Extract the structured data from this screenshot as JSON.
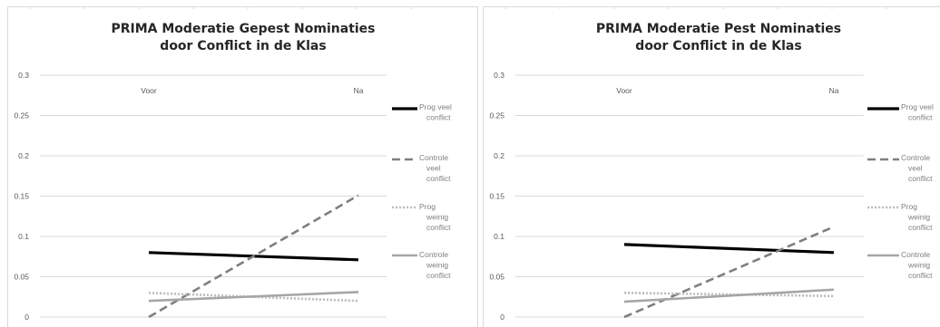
{
  "chart_data": [
    {
      "type": "line",
      "title_lines": [
        "PRIMA Moderatie Gepest Nominaties",
        "door Conflict in de Klas"
      ],
      "categories": [
        "Voor",
        "Na"
      ],
      "ylim": [
        0,
        0.3
      ],
      "yticks": [
        "0",
        "0.05",
        "0.1",
        "0.15",
        "0.2",
        "0.25",
        "0.3"
      ],
      "grid": true,
      "legend_position": "right",
      "series": [
        {
          "name_lines": [
            "Prog veel",
            "conflict"
          ],
          "values": [
            0.08,
            0.071
          ],
          "color": "#000000",
          "style": "solid"
        },
        {
          "name_lines": [
            "Controle",
            "veel",
            "conflict"
          ],
          "values": [
            0.0,
            0.151
          ],
          "color": "#7f7f7f",
          "style": "dashed"
        },
        {
          "name_lines": [
            "Prog",
            "weinig",
            "conflict"
          ],
          "values": [
            0.03,
            0.02
          ],
          "color": "#bfbfbf",
          "style": "dotted"
        },
        {
          "name_lines": [
            "Controle",
            "weinig",
            "conflict"
          ],
          "values": [
            0.02,
            0.031
          ],
          "color": "#a6a6a6",
          "style": "solid"
        }
      ]
    },
    {
      "type": "line",
      "title_lines": [
        "PRIMA Moderatie Pest Nominaties",
        "door Conflict in de Klas"
      ],
      "categories": [
        "Voor",
        "Na"
      ],
      "ylim": [
        0,
        0.3
      ],
      "yticks": [
        "0",
        "0.05",
        "0.1",
        "0.15",
        "0.2",
        "0.25",
        "0.3"
      ],
      "grid": true,
      "legend_position": "right",
      "series": [
        {
          "name_lines": [
            "Prog veel",
            "conflict"
          ],
          "values": [
            0.09,
            0.08
          ],
          "color": "#000000",
          "style": "solid"
        },
        {
          "name_lines": [
            "Controle",
            "veel",
            "conflict"
          ],
          "values": [
            0.0,
            0.112
          ],
          "color": "#7f7f7f",
          "style": "dashed"
        },
        {
          "name_lines": [
            "Prog",
            "weinig",
            "conflict"
          ],
          "values": [
            0.03,
            0.026
          ],
          "color": "#bfbfbf",
          "style": "dotted"
        },
        {
          "name_lines": [
            "Controle",
            "weinig",
            "conflict"
          ],
          "values": [
            0.019,
            0.034
          ],
          "color": "#a6a6a6",
          "style": "solid"
        }
      ]
    }
  ]
}
